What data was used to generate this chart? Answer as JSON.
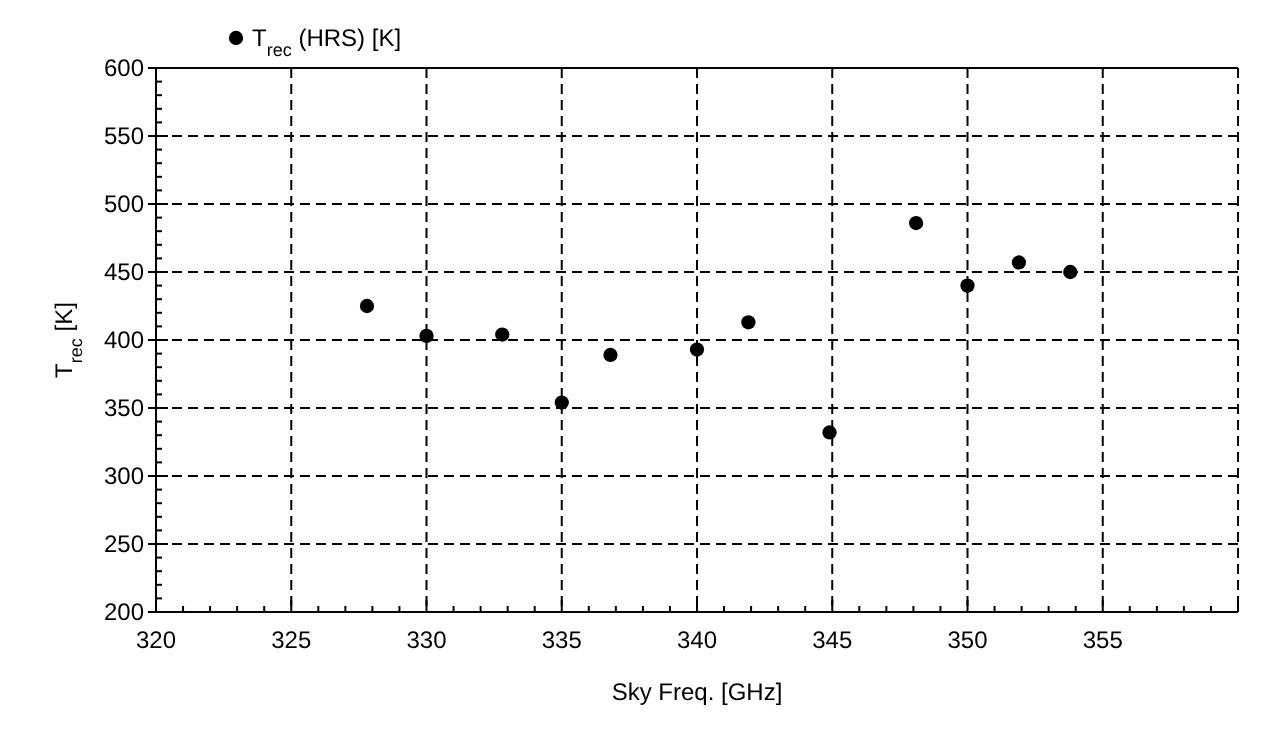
{
  "chart_data": {
    "type": "scatter",
    "xlabel": "Sky Freq. [GHz]",
    "ylabel": "T$_{rec}$ [K]",
    "x": [
      327.8,
      330,
      332.8,
      335,
      336.8,
      340,
      341.9,
      344.9,
      348.1,
      350,
      351.9,
      353.8
    ],
    "series": [
      {
        "name": "T$_{rec}$ (HRS) [K]",
        "color": "#000000",
        "values": [
          425,
          403,
          404,
          354,
          389,
          393,
          413,
          332,
          486,
          440,
          457,
          450
        ]
      }
    ],
    "xlim": [
      320,
      360
    ],
    "xticks": [
      320,
      325,
      330,
      335,
      340,
      345,
      350,
      355,
      {
        "value": 360,
        "label": null
      }
    ],
    "ylim": [
      200,
      600
    ],
    "yticks": [
      200,
      250,
      300,
      350,
      400,
      450,
      500,
      550,
      600
    ],
    "grid": true,
    "legend": "top left",
    "marker": "circle"
  }
}
